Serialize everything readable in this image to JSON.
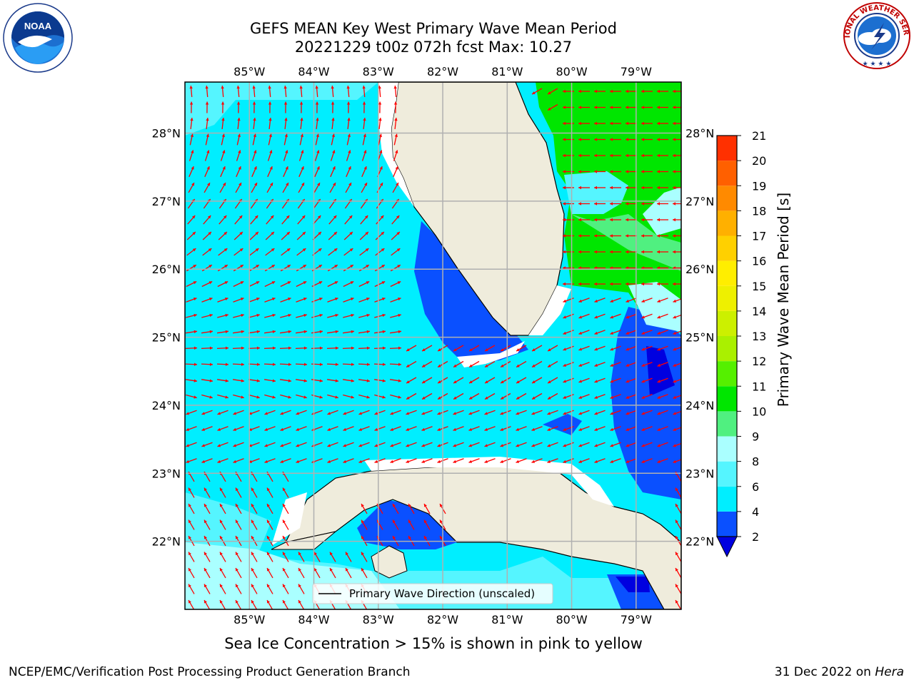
{
  "title_line1": "GEFS MEAN Key West Primary Wave Mean Period",
  "title_line2": "20221229 t00z 072h fcst   Max: 10.27",
  "caption": "Sea Ice Concentration > 15% is shown in pink to yellow",
  "footer_left": "NCEP/EMC/Verification Post Processing Product Generation Branch",
  "footer_right_prefix": "31 Dec 2022 on ",
  "footer_right_host": "Hera",
  "legend_label": "Primary Wave Direction (unscaled)",
  "colorbar": {
    "label": "Primary Wave Mean Period [s]",
    "ticks": [
      2,
      4,
      6,
      8,
      9,
      10,
      11,
      12,
      13,
      14,
      15,
      16,
      17,
      18,
      19,
      20,
      21
    ],
    "colors": [
      "#0a50ff",
      "#00eeff",
      "#55f5ff",
      "#aaffff",
      "#50f080",
      "#00e600",
      "#55f000",
      "#aaf000",
      "#ccf000",
      "#eef000",
      "#ffee00",
      "#ffd000",
      "#ffb000",
      "#ff8a00",
      "#ff6000",
      "#ff3000"
    ],
    "extend_color": "#0000e0"
  },
  "axes": {
    "lon_ticks": [
      "85°W",
      "84°W",
      "83°W",
      "82°W",
      "81°W",
      "80°W",
      "79°W"
    ],
    "lon_values": [
      -85,
      -84,
      -83,
      -82,
      -81,
      -80,
      -79
    ],
    "lat_ticks": [
      "28°N",
      "27°N",
      "26°N",
      "25°N",
      "24°N",
      "23°N",
      "22°N"
    ],
    "lat_values": [
      28,
      27,
      26,
      25,
      24,
      23,
      22
    ],
    "lon_range": [
      -86,
      -78.3
    ],
    "lat_range": [
      21,
      28.75
    ]
  },
  "colors": {
    "ocean_base": "#00eeff",
    "land": "#efecdc",
    "low_period": "#0a50ff",
    "very_low": "#0000e0",
    "mid_period": "#aaffff",
    "light_period": "#55f5ff",
    "green_period": "#00e600",
    "light_green": "#50f080",
    "arrow": "#ff0000",
    "grid": "#b0b0b0"
  },
  "logos": {
    "noaa_text": "NOAA",
    "nws_text": "NATIONAL WEATHER SERVICE"
  }
}
